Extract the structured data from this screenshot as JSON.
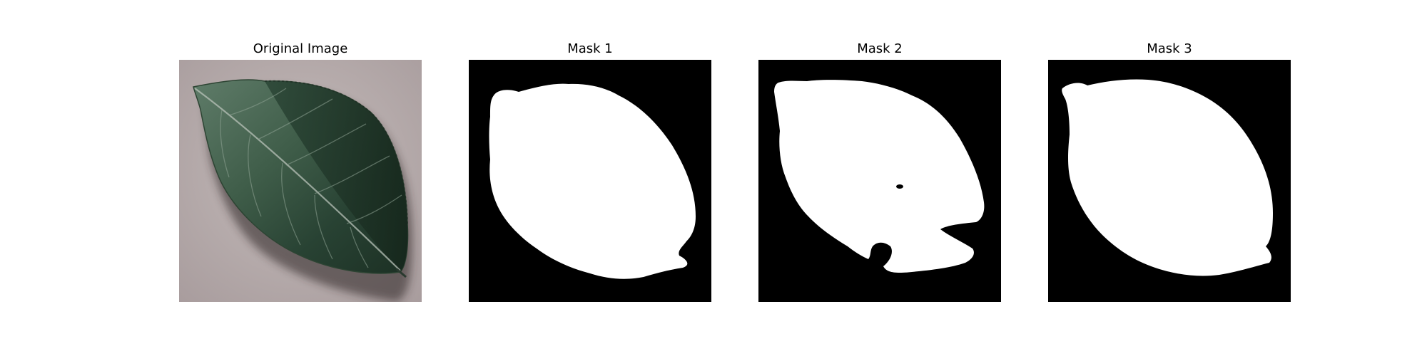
{
  "figure": {
    "panels": [
      {
        "title": "Original Image",
        "kind": "photo",
        "subject": "leaf"
      },
      {
        "title": "Mask 1",
        "kind": "binary-mask"
      },
      {
        "title": "Mask 2",
        "kind": "binary-mask"
      },
      {
        "title": "Mask 3",
        "kind": "binary-mask"
      }
    ]
  },
  "colors": {
    "page_background": "#ffffff",
    "mask_foreground": "#ffffff",
    "mask_background": "#000000",
    "photo_background": "#b9aeae",
    "leaf_dark": "#1f3527",
    "leaf_mid": "#3e5b48",
    "leaf_light": "#5d7a67"
  }
}
